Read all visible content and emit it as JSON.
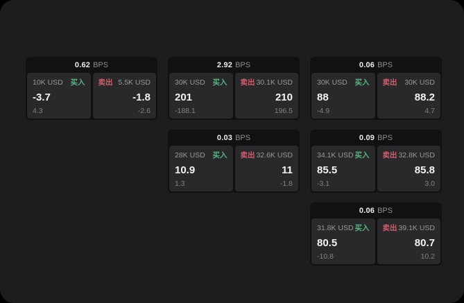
{
  "labels": {
    "buy": "买入",
    "sell": "卖出",
    "bps_suffix": "BPS"
  },
  "colors": {
    "buy": "#55b380",
    "sell": "#d45c6b"
  },
  "cards": [
    {
      "row": 1,
      "col": 1,
      "bps": "0.62",
      "buy": {
        "amount": "10K USD",
        "price": "-3.7",
        "sub": "4.3"
      },
      "sell": {
        "amount": "5.5K USD",
        "price": "-1.8",
        "sub": "-2.6"
      }
    },
    {
      "row": 1,
      "col": 2,
      "bps": "2.92",
      "buy": {
        "amount": "30K USD",
        "price": "201",
        "sub": "-188.1"
      },
      "sell": {
        "amount": "30.1K USD",
        "price": "210",
        "sub": "196.5"
      }
    },
    {
      "row": 1,
      "col": 3,
      "bps": "0.06",
      "buy": {
        "amount": "30K USD",
        "price": "88",
        "sub": "-4.9"
      },
      "sell": {
        "amount": "30K USD",
        "price": "88.2",
        "sub": "4.7"
      }
    },
    {
      "row": 2,
      "col": 2,
      "bps": "0.03",
      "buy": {
        "amount": "28K USD",
        "price": "10.9",
        "sub": "1.3"
      },
      "sell": {
        "amount": "32.6K USD",
        "price": "11",
        "sub": "-1.8"
      }
    },
    {
      "row": 2,
      "col": 3,
      "bps": "0.09",
      "buy": {
        "amount": "34.1K USD",
        "price": "85.5",
        "sub": "-3.1"
      },
      "sell": {
        "amount": "32.8K USD",
        "price": "85.8",
        "sub": "3.0"
      }
    },
    {
      "row": 3,
      "col": 3,
      "bps": "0.06",
      "buy": {
        "amount": "31.8K USD",
        "price": "80.5",
        "sub": "-10.8"
      },
      "sell": {
        "amount": "39.1K USD",
        "price": "80.7",
        "sub": "10.2"
      }
    }
  ]
}
